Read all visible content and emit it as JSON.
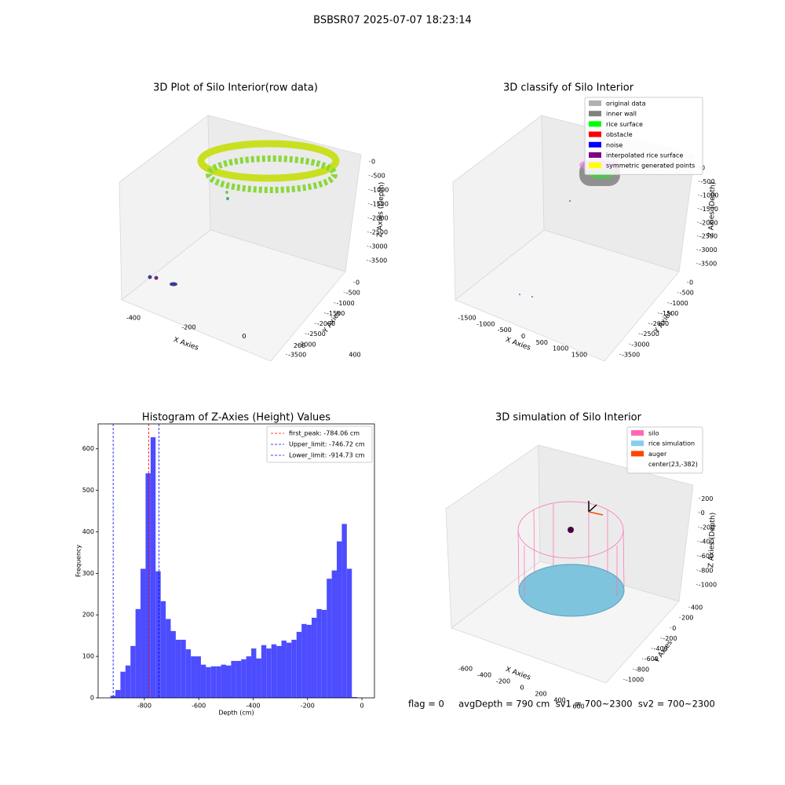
{
  "suptitle": "BSBSR07 2025-07-07 18:23:14",
  "chart_data": [
    {
      "type": "scatter3d",
      "title": "3D Plot of Silo Interior(row data)",
      "xlabel": "X Axies",
      "ylabel": "Y Axies",
      "zlabel": "Z Axies (Depth)",
      "xlim": [
        -480,
        480
      ],
      "xticks": [
        -400,
        -200,
        0,
        200,
        400
      ],
      "ylim": [
        -3600,
        100
      ],
      "yticks": [
        0,
        -500,
        -1000,
        -1500,
        -2000,
        -2500,
        -3000,
        -3500
      ],
      "zlim": [
        -3650,
        150
      ],
      "zticks": [
        0,
        -500,
        -1000,
        -1500,
        -2000,
        -2500,
        -3000,
        -3500
      ]
    },
    {
      "type": "scatter3d",
      "title": "3D classify of Silo Interior",
      "xlabel": "X Axies",
      "ylabel": "Y Axies",
      "zlabel": "Z Axies (Depth)",
      "xlim": [
        -1700,
        1700
      ],
      "xticks": [
        -1500,
        -1000,
        -500,
        0,
        500,
        1000,
        1500
      ],
      "ylim": [
        -3600,
        100
      ],
      "yticks": [
        0,
        -500,
        -1000,
        -1500,
        -2000,
        -2500,
        -3000,
        -3500
      ],
      "zlim": [
        -3650,
        150
      ],
      "zticks": [
        0,
        -500,
        -1000,
        -1500,
        -2000,
        -2500,
        -3000,
        -3500
      ],
      "legend": [
        {
          "name": "original data",
          "color": "#b0b0b0"
        },
        {
          "name": "inner wall",
          "color": "#808080"
        },
        {
          "name": "rice surface",
          "color": "#00ff00"
        },
        {
          "name": "obstacle",
          "color": "#ff0000"
        },
        {
          "name": "noise",
          "color": "#0000ff"
        },
        {
          "name": "interpolated rice surface",
          "color": "#800080"
        },
        {
          "name": "symmetric generated points",
          "color": "#ffff00"
        }
      ]
    },
    {
      "type": "histogram",
      "title": "Histogram of Z-Axies (Height) Values",
      "xlabel": "Depth (cm)",
      "ylabel": "Frequency",
      "color": "#4d4dff",
      "bins": [
        -925,
        -906.5,
        -888,
        -869.5,
        -851,
        -832.5,
        -814,
        -795.5,
        -777,
        -758.5,
        -740,
        -721.5,
        -703,
        -684.5,
        -666,
        -647.5,
        -629,
        -610.5,
        -592,
        -573.5,
        -555,
        -536.5,
        -518,
        -499.5,
        -481,
        -462.5,
        -444,
        -425.5,
        -407,
        -388.5,
        -370,
        -351.5,
        -333,
        -314.5,
        -296,
        -277.5,
        -259,
        -240.5,
        -222,
        -203.5,
        -185,
        -166.5,
        -148,
        -129.5,
        -111,
        -92.5,
        -74,
        -55.5,
        -37,
        -18.5
      ],
      "values": [
        5,
        19,
        63,
        78,
        125,
        214,
        311,
        541,
        628,
        305,
        233,
        190,
        161,
        140,
        140,
        117,
        100,
        100,
        80,
        74,
        76,
        76,
        80,
        78,
        89,
        89,
        93,
        100,
        119,
        95,
        127,
        119,
        129,
        125,
        138,
        133,
        140,
        159,
        178,
        176,
        193,
        214,
        212,
        287,
        307,
        377,
        419,
        311,
        2
      ],
      "xlim": [
        -970,
        46
      ],
      "xticks": [
        -800,
        -600,
        -400,
        -200,
        0
      ],
      "ylim": [
        0,
        660
      ],
      "yticks": [
        0,
        100,
        200,
        300,
        400,
        500,
        600
      ],
      "lines": [
        {
          "name": "first_peak: -784.06 cm",
          "value": -784.06,
          "color": "#ff0000"
        },
        {
          "name": "Upper_limit: -746.72 cm",
          "value": -746.72,
          "color": "#0000ff"
        },
        {
          "name": "Lower_limit: -914.73 cm",
          "value": -914.73,
          "color": "#0000ff"
        }
      ]
    },
    {
      "type": "surface3d",
      "title": "3D simulation of Silo Interior",
      "xlabel": "X Axies",
      "ylabel": "Y Axies",
      "zlabel": "Z Axies (Depth)",
      "xlim": [
        -700,
        700
      ],
      "xticks": [
        -600,
        -400,
        -200,
        0,
        200,
        400,
        600
      ],
      "ylim": [
        -1100,
        500
      ],
      "yticks": [
        400,
        200,
        0,
        -200,
        -400,
        -600,
        -800,
        -1000
      ],
      "zlim": [
        -1100,
        300
      ],
      "zticks": [
        200,
        0,
        -200,
        -400,
        -600,
        -800,
        -1000
      ],
      "legend": [
        {
          "name": "silo",
          "color": "#ff69b4"
        },
        {
          "name": "rice simulation",
          "color": "#87ceeb"
        },
        {
          "name": "auger",
          "color": "#ff4500"
        },
        {
          "name": "center(23,-382)",
          "color": "#ffffff"
        }
      ]
    }
  ],
  "footer": "flag = 0     avgDepth = 790 cm  sv1 = 700~2300  sv2 = 700~2300"
}
